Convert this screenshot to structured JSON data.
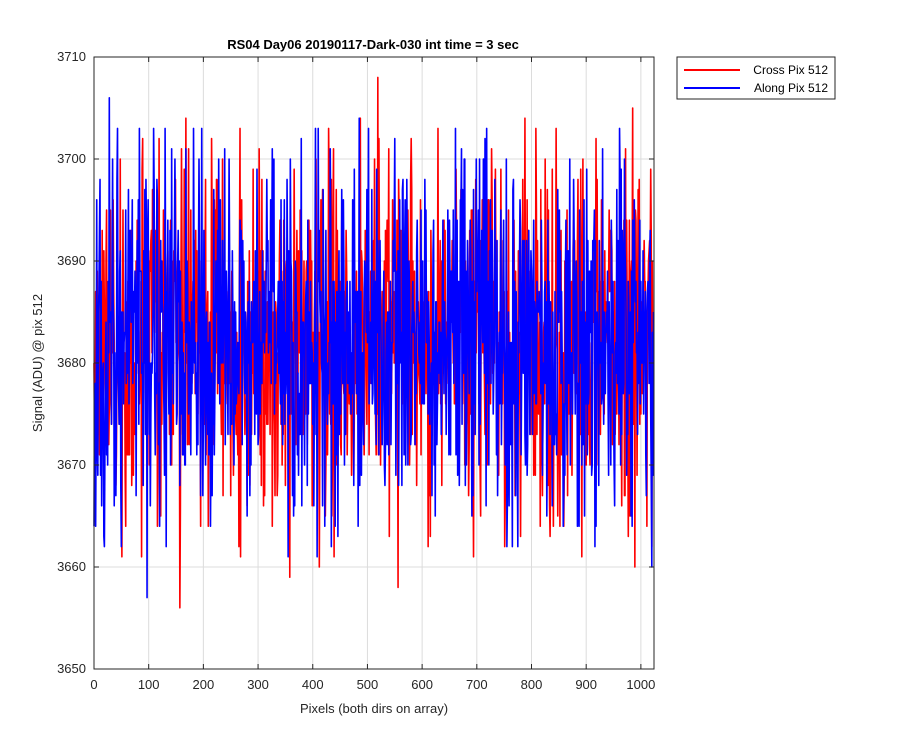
{
  "chart_data": {
    "type": "line",
    "title": "RS04 Day06 20190117-Dark-030 int time = 3 sec",
    "xlabel": "Pixels (both dirs on array)",
    "ylabel": "Signal (ADU) @ pix 512",
    "xlim": [
      0,
      1024
    ],
    "ylim": [
      3650,
      3710
    ],
    "xticks": [
      0,
      100,
      200,
      300,
      400,
      500,
      600,
      700,
      800,
      900,
      1000
    ],
    "yticks": [
      3650,
      3660,
      3670,
      3680,
      3690,
      3700,
      3710
    ],
    "grid": true,
    "legend_position": "outside-top-right",
    "series": [
      {
        "name": "Cross Pix 512",
        "color": "#ff0000",
        "stats": {
          "count": 1024,
          "mean": 3682,
          "min": 3656,
          "max": 3708
        },
        "extremes": [
          {
            "x": 157,
            "y": 3656
          },
          {
            "x": 519,
            "y": 3708
          },
          {
            "x": 556,
            "y": 3658
          },
          {
            "x": 165,
            "y": 3699
          },
          {
            "x": 88,
            "y": 3699
          },
          {
            "x": 235,
            "y": 3700
          },
          {
            "x": 808,
            "y": 3703
          },
          {
            "x": 845,
            "y": 3703
          },
          {
            "x": 1020,
            "y": 3662
          }
        ]
      },
      {
        "name": "Along Pix 512",
        "color": "#0000ff",
        "stats": {
          "count": 1024,
          "mean": 3682,
          "min": 3657,
          "max": 3706
        },
        "extremes": [
          {
            "x": 28,
            "y": 3706
          },
          {
            "x": 97,
            "y": 3657
          },
          {
            "x": 485,
            "y": 3704
          },
          {
            "x": 130,
            "y": 3703
          },
          {
            "x": 355,
            "y": 3661
          },
          {
            "x": 408,
            "y": 3661
          },
          {
            "x": 775,
            "y": 3662
          },
          {
            "x": 712,
            "y": 3700
          }
        ]
      }
    ]
  }
}
